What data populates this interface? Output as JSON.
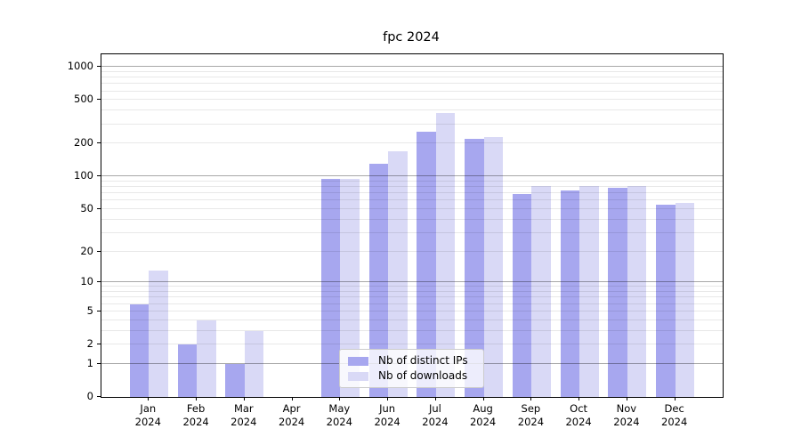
{
  "figure": {
    "background": "#ffffff",
    "text_color": "#000000"
  },
  "chart_data": {
    "type": "bar",
    "title": "fpc 2024",
    "xlabel": "",
    "ylabel": "",
    "grid": "on",
    "grid_above_bars": true,
    "yscale": "log10(value+1)",
    "ylim": [
      0,
      1300
    ],
    "y_ticks": [
      1000,
      500,
      200,
      100,
      50,
      20,
      10,
      5,
      2,
      1,
      0
    ],
    "y_major_gridlines": [
      1,
      10,
      100,
      1000
    ],
    "y_minor_gridlines": [
      2,
      3,
      4,
      5,
      6,
      7,
      8,
      9,
      20,
      30,
      40,
      50,
      60,
      70,
      80,
      90,
      200,
      300,
      400,
      500,
      600,
      700,
      800,
      900
    ],
    "categories": [
      "Jan 2024",
      "Feb 2024",
      "Mar 2024",
      "Apr 2024",
      "May 2024",
      "Jun 2024",
      "Jul 2024",
      "Aug 2024",
      "Sep 2024",
      "Oct 2024",
      "Nov 2024",
      "Dec 2024"
    ],
    "series": [
      {
        "name": "Nb of distinct IPs",
        "color": "#a7a7ef",
        "values": [
          6,
          2,
          1,
          0,
          95,
          130,
          255,
          220,
          69,
          75,
          78,
          55
        ]
      },
      {
        "name": "Nb of downloads",
        "color": "#d9d9f6",
        "values": [
          13,
          4,
          3,
          0,
          95,
          170,
          380,
          230,
          81,
          81,
          82,
          57
        ]
      }
    ],
    "legend_position": "lower center inside plot"
  }
}
